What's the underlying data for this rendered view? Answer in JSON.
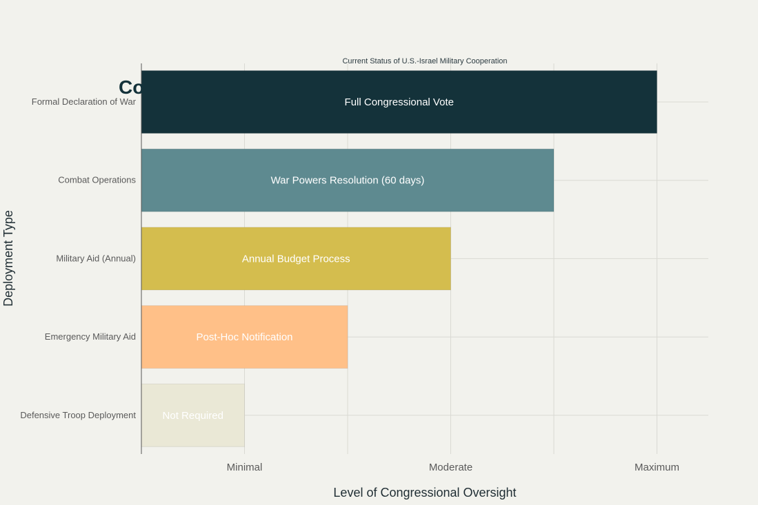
{
  "chart_data": {
    "type": "bar",
    "orientation": "horizontal",
    "title": "Co",
    "subtitle": "Current Status of U.S.-Israel Military Cooperation",
    "xlabel": "Level of Congressional Oversight",
    "ylabel": "Deployment Type",
    "xlim": [
      0,
      5.5
    ],
    "x_ticks": [
      {
        "value": 1,
        "label": "Minimal"
      },
      {
        "value": 3,
        "label": "Moderate"
      },
      {
        "value": 5,
        "label": "Maximum"
      }
    ],
    "x_gridlines": [
      1,
      2,
      3,
      4,
      5
    ],
    "grid": true,
    "categories": [
      "Formal Declaration of War",
      "Combat Operations",
      "Military Aid (Annual)",
      "Emergency Military Aid",
      "Defensive Troop Deployment"
    ],
    "values": [
      5,
      4,
      3,
      2,
      1
    ],
    "bar_labels": [
      "Full Congressional Vote",
      "War Powers Resolution (60 days)",
      "Annual Budget Process",
      "Post-Hoc Notification",
      "Not Required"
    ],
    "colors": [
      "#14323a",
      "#5e8a90",
      "#d4bd4e",
      "#ffc088",
      "#eae8d6"
    ]
  }
}
